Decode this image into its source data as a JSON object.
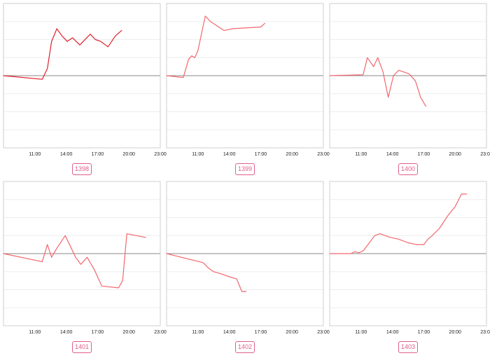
{
  "colors": {
    "series_dark": "#e0202a",
    "series": "#f2676e",
    "badge": "#e0608a"
  },
  "chart_data": [
    {
      "type": "line",
      "badge": "1398",
      "color": "#e0202a",
      "xticks": [
        "11:00",
        "14:00",
        "17:00",
        "20:00",
        "23:00"
      ],
      "xlim": [
        8,
        23
      ],
      "ylim": [
        -4,
        4
      ],
      "grid": true,
      "x": [
        8,
        11.7,
        12.2,
        12.6,
        13.1,
        13.6,
        14.1,
        14.6,
        15.3,
        16.3,
        16.8,
        17.3,
        18.0,
        18.7,
        19.3
      ],
      "y": [
        0,
        -0.2,
        0.4,
        1.9,
        2.6,
        2.2,
        1.9,
        2.1,
        1.7,
        2.3,
        2.0,
        1.9,
        1.6,
        2.2,
        2.5
      ]
    },
    {
      "type": "line",
      "badge": "1399",
      "color": "#f2676e",
      "xticks": [
        "11:00",
        "14:00",
        "17:00",
        "20:00",
        "23:00"
      ],
      "xlim": [
        8,
        23
      ],
      "ylim": [
        -4,
        4
      ],
      "grid": true,
      "x": [
        8,
        9.6,
        10.1,
        10.4,
        10.7,
        11.0,
        11.4,
        11.7,
        12.2,
        13.5,
        14.3,
        17.0,
        17.4
      ],
      "y": [
        0,
        -0.1,
        0.9,
        1.1,
        1.0,
        1.4,
        2.5,
        3.3,
        3.0,
        2.5,
        2.6,
        2.7,
        2.9
      ]
    },
    {
      "type": "line",
      "badge": "1400",
      "color": "#f2676e",
      "xticks": [
        "11:00",
        "14:00",
        "17:00",
        "20:00",
        "23:00"
      ],
      "xlim": [
        8,
        23
      ],
      "ylim": [
        -4,
        4
      ],
      "grid": true,
      "x": [
        8,
        11.2,
        11.6,
        12.2,
        12.6,
        13.1,
        13.6,
        14.1,
        14.6,
        15.1,
        15.6,
        16.2,
        16.7,
        17.2
      ],
      "y": [
        0,
        0.05,
        1.0,
        0.5,
        1.0,
        0.2,
        -1.2,
        0.0,
        0.3,
        0.2,
        0.1,
        -0.3,
        -1.2,
        -1.7
      ]
    },
    {
      "type": "line",
      "badge": "1401",
      "color": "#f2676e",
      "xticks": [
        "11:00",
        "14:00",
        "17:00",
        "20:00",
        "23:00"
      ],
      "xlim": [
        8,
        23
      ],
      "ylim": [
        -4,
        4
      ],
      "grid": true,
      "x": [
        8,
        11.7,
        12.2,
        12.6,
        13.1,
        13.9,
        14.4,
        14.9,
        15.4,
        16.0,
        16.7,
        17.4,
        19.0,
        19.4,
        19.8,
        21.6
      ],
      "y": [
        0,
        -0.45,
        0.5,
        -0.2,
        0.3,
        1.0,
        0.4,
        -0.2,
        -0.6,
        -0.2,
        -0.9,
        -1.8,
        -1.9,
        -1.5,
        1.1,
        0.9
      ]
    },
    {
      "type": "line",
      "badge": "1402",
      "color": "#f2676e",
      "xticks": [
        "11:00",
        "14:00",
        "17:00",
        "20:00",
        "23:00"
      ],
      "xlim": [
        8,
        23
      ],
      "ylim": [
        -4,
        4
      ],
      "grid": true,
      "x": [
        8,
        11.5,
        12.0,
        12.5,
        13.1,
        14.1,
        14.7,
        15.2,
        15.6
      ],
      "y": [
        0,
        -0.5,
        -0.8,
        -1.0,
        -1.1,
        -1.3,
        -1.4,
        -2.1,
        -2.1
      ]
    },
    {
      "type": "line",
      "badge": "1403",
      "color": "#f2676e",
      "xticks": [
        "11:00",
        "14:00",
        "17:00",
        "20:00",
        "23:00"
      ],
      "xlim": [
        8,
        23
      ],
      "ylim": [
        -4,
        4
      ],
      "grid": true,
      "x": [
        8,
        10.0,
        10.4,
        10.8,
        11.2,
        11.8,
        12.3,
        12.8,
        13.8,
        14.6,
        15.5,
        16.3,
        17.0,
        17.4,
        17.8,
        18.5,
        19.3,
        20.0,
        20.6,
        21.1
      ],
      "y": [
        0,
        0.0,
        0.1,
        0.05,
        0.15,
        0.6,
        1.0,
        1.1,
        0.9,
        0.8,
        0.6,
        0.5,
        0.5,
        0.8,
        1.0,
        1.4,
        2.1,
        2.6,
        3.3,
        3.3
      ]
    }
  ]
}
